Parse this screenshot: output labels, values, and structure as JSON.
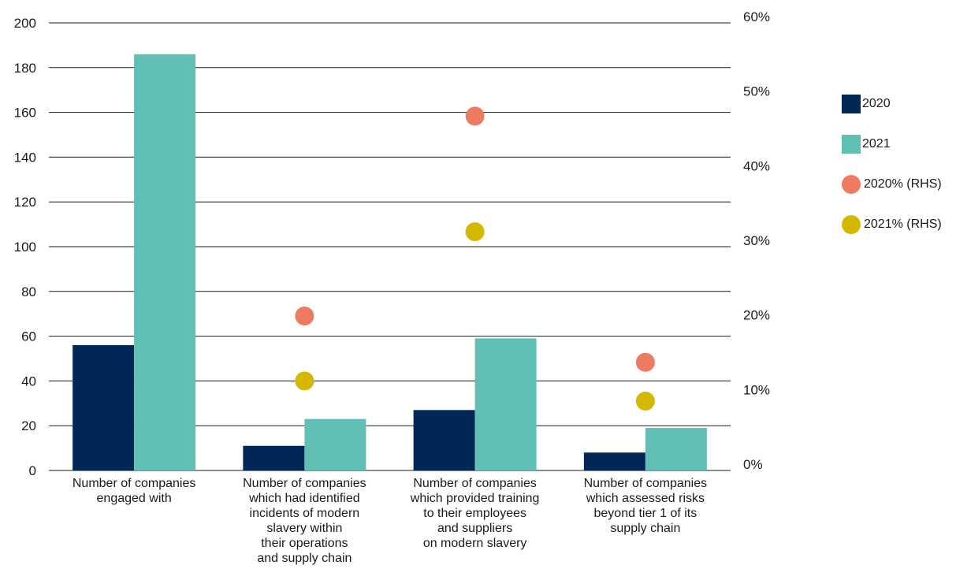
{
  "chart_data": {
    "type": "bar",
    "categories": [
      [
        "Number of companies",
        "engaged with"
      ],
      [
        "Number of companies",
        "which had identified",
        "incidents of modern",
        "slavery within",
        "their operations",
        "and supply chain"
      ],
      [
        "Number of companies",
        "which provided training",
        "to their employees",
        "and suppliers",
        "on modern slavery"
      ],
      [
        "Number of companies",
        "which assessed risks",
        "beyond tier 1 of its",
        "supply chain"
      ]
    ],
    "series": [
      {
        "name": "2020",
        "kind": "bar",
        "axis": "left",
        "color": "#002856",
        "values": [
          56,
          11,
          27,
          8
        ]
      },
      {
        "name": "2021",
        "kind": "bar",
        "axis": "left",
        "color": "#61bfb3",
        "values": [
          186,
          23,
          59,
          19
        ]
      },
      {
        "name": "2020% (RHS)",
        "kind": "scatter",
        "axis": "right",
        "color": "#ef7a62",
        "values": [
          null,
          20.7,
          47.5,
          14.5
        ]
      },
      {
        "name": "2021% (RHS)",
        "kind": "scatter",
        "axis": "right",
        "color": "#d4b800",
        "values": [
          null,
          12.0,
          32.0,
          9.3
        ]
      }
    ],
    "ylim": [
      0,
      200
    ],
    "yticks": [
      "0",
      "20",
      "40",
      "60",
      "80",
      "100",
      "120",
      "140",
      "160",
      "180",
      "200"
    ],
    "y2lim": [
      0,
      60
    ],
    "y2ticks": [
      "0%",
      "10%",
      "20%",
      "30%",
      "40%",
      "50%",
      "60%"
    ],
    "grid": true,
    "legend_position": "right"
  }
}
